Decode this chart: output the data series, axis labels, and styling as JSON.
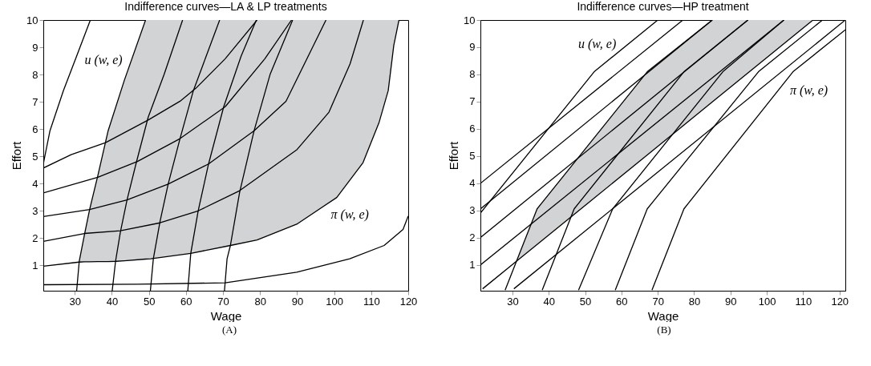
{
  "chart_data": [
    {
      "type": "line",
      "title": "Indifference curves—LA & LP treatments",
      "xlabel": "Wage",
      "ylabel": "Effort",
      "xlim": [
        21.5,
        120
      ],
      "ylim": [
        0.07,
        10
      ],
      "xticks": [
        30,
        40,
        50,
        60,
        70,
        80,
        90,
        100,
        110,
        120
      ],
      "yticks": [
        1,
        2,
        3,
        4,
        5,
        6,
        7,
        8,
        9,
        10
      ],
      "annotations": [
        "u (w, e)",
        "π (w, e)",
        "(A)"
      ],
      "series": [
        {
          "color": "#000000",
          "x": [
            21.5,
            31.2,
            32.6,
            34.0,
            36.2,
            39.0,
            41.2,
            43.4,
            49.1,
            50.5,
            61.3,
            72.0,
            79.2,
            89.9,
            100.7,
            107.8,
            112.1,
            114.6,
            116.1,
            117.5
          ],
          "values": [
            0.97,
            1.12,
            1.13,
            1.13,
            1.14,
            1.14,
            1.15,
            1.17,
            1.23,
            1.24,
            1.44,
            1.73,
            1.93,
            2.51,
            3.49,
            4.77,
            6.23,
            7.41,
            9.07,
            10
          ],
          "lower": [
            0.97,
            1.12,
            1.13,
            1.13,
            1.14,
            1.14,
            1.15,
            1.17,
            1.23,
            1.24,
            1.44,
            1.73,
            1.93,
            2.51,
            3.49,
            4.77,
            6.23,
            7.41,
            9.07,
            10
          ],
          "upper": [
            0.97,
            1.15,
            2.12,
            3.05,
            4.28,
            5.94,
            6.87,
            7.8,
            10,
            10,
            10,
            10,
            10,
            10,
            10,
            10,
            10,
            10,
            10,
            10
          ]
        },
        {
          "color": "#000000",
          "x": [
            21.5,
            23.3,
            26.9,
            30.5,
            34.2
          ],
          "values": [
            4.72,
            5.94,
            7.4,
            8.68,
            10
          ]
        },
        {
          "color": "#000000",
          "x": [
            30.5,
            31.2,
            32.6,
            34.0,
            36.2,
            39.0,
            43.4,
            49.1
          ],
          "values": [
            0.07,
            1.15,
            2.12,
            3.05,
            4.28,
            5.94,
            7.8,
            10
          ]
        },
        {
          "color": "#000000",
          "x": [
            40.1,
            41.0,
            42.3,
            44.1,
            46.6,
            49.8,
            54.1,
            59.1
          ],
          "values": [
            0.07,
            1.15,
            2.22,
            3.4,
            4.77,
            6.43,
            8.0,
            10
          ]
        },
        {
          "color": "#000000",
          "x": [
            50.4,
            51.2,
            53.0,
            55.2,
            58.4,
            62.0,
            69.1
          ],
          "values": [
            0.07,
            1.24,
            2.61,
            3.98,
            5.65,
            7.41,
            10
          ]
        },
        {
          "color": "#000000",
          "x": [
            60.5,
            61.3,
            63.3,
            66.1,
            70.2,
            74.9,
            79.0
          ],
          "values": [
            0.07,
            1.44,
            3.0,
            4.72,
            6.82,
            8.68,
            10
          ]
        },
        {
          "color": "#000000",
          "x": [
            70.4,
            71.1,
            72.0,
            74.5,
            78.4,
            82.7,
            88.8
          ],
          "values": [
            0.07,
            1.24,
            1.73,
            3.69,
            5.94,
            8.0,
            10
          ]
        },
        {
          "color": "#000000",
          "x": [
            21.5,
            29.0,
            38.3,
            49.8,
            58.4,
            62.7,
            70.6,
            79.2
          ],
          "values": [
            4.57,
            5.06,
            5.5,
            6.33,
            7.02,
            7.5,
            8.58,
            10
          ]
        },
        {
          "color": "#000000",
          "x": [
            21.5,
            36.2,
            46.9,
            58.4,
            70.6,
            81.3,
            88.5
          ],
          "values": [
            3.66,
            4.23,
            4.81,
            5.65,
            6.82,
            8.58,
            10
          ]
        },
        {
          "color": "#000000",
          "x": [
            21.5,
            34.0,
            44.1,
            55.2,
            66.1,
            78.4,
            87.0,
            97.8
          ],
          "values": [
            2.79,
            3.05,
            3.4,
            3.98,
            4.72,
            5.94,
            7.02,
            10
          ]
        },
        {
          "color": "#000000",
          "x": [
            21.5,
            32.6,
            42.3,
            53.0,
            63.3,
            74.5,
            90.0,
            98.6,
            104.3,
            107.9
          ],
          "values": [
            1.88,
            2.17,
            2.27,
            2.56,
            3.0,
            3.74,
            5.25,
            6.62,
            8.39,
            10
          ]
        },
        {
          "color": "#000000",
          "x": [
            21.5,
            46.9,
            70.6,
            89.9,
            104.2,
            113.5,
            118.6,
            120
          ],
          "values": [
            0.29,
            0.31,
            0.36,
            0.75,
            1.24,
            1.73,
            2.32,
            2.81
          ]
        }
      ]
    },
    {
      "type": "line",
      "title": "Indifference curves—HP treatment",
      "xlabel": "Wage",
      "ylabel": "Effort",
      "xlim": [
        21.2,
        121.6
      ],
      "ylim": [
        0.05,
        10
      ],
      "xticks": [
        30,
        40,
        50,
        60,
        70,
        80,
        90,
        100,
        110,
        120
      ],
      "yticks": [
        1,
        2,
        3,
        4,
        5,
        6,
        7,
        8,
        9,
        10
      ],
      "annotations": [
        "u (w, e)",
        "π (w, e)",
        "(B)"
      ],
      "series": [
        {
          "color": "#000000",
          "x": [
            21.24,
            76.9
          ],
          "values": [
            4.0,
            10
          ]
        },
        {
          "color": "#000000",
          "x": [
            21.24,
            85.0
          ],
          "values": [
            3.06,
            10
          ]
        },
        {
          "color": "#000000",
          "x": [
            21.24,
            94.8
          ],
          "values": [
            2.01,
            10
          ]
        },
        {
          "color": "#000000",
          "x": [
            21.24,
            104.7
          ],
          "values": [
            1.0,
            10
          ]
        },
        {
          "color": "#000000",
          "x": [
            21.8,
            31.1,
            36.8,
            67.1,
            85.0,
            112.7
          ],
          "values": [
            0.12,
            1.13,
            1.75,
            5.04,
            6.99,
            10
          ],
          "lower": [
            0.12,
            1.13,
            1.75,
            5.04,
            6.99,
            10
          ],
          "upper": [
            0.12,
            1.13,
            3.06,
            8.1,
            10,
            10
          ]
        },
        {
          "color": "#000000",
          "x": [
            30.4,
            121.6
          ],
          "values": [
            0.12,
            10
          ]
        },
        {
          "color": "#000000",
          "x": [
            21.24,
            52.5,
            70.0
          ],
          "values": [
            2.91,
            8.1,
            10
          ]
        },
        {
          "color": "#000000",
          "x": [
            28.0,
            36.8,
            67.1,
            85.0
          ],
          "values": [
            0.07,
            3.06,
            8.1,
            10
          ]
        },
        {
          "color": "#000000",
          "x": [
            38.2,
            47.0,
            77.2,
            94.8
          ],
          "values": [
            0.07,
            3.06,
            8.1,
            10
          ]
        },
        {
          "color": "#000000",
          "x": [
            48.2,
            57.6,
            87.9,
            104.7
          ],
          "values": [
            0.07,
            3.06,
            8.1,
            10
          ]
        },
        {
          "color": "#000000",
          "x": [
            58.3,
            67.1,
            97.7,
            115.3
          ],
          "values": [
            0.07,
            3.06,
            8.1,
            10
          ]
        },
        {
          "color": "#000000",
          "x": [
            68.4,
            77.2,
            107.2,
            121.6
          ],
          "values": [
            0.07,
            3.06,
            8.1,
            9.64
          ]
        }
      ]
    }
  ]
}
